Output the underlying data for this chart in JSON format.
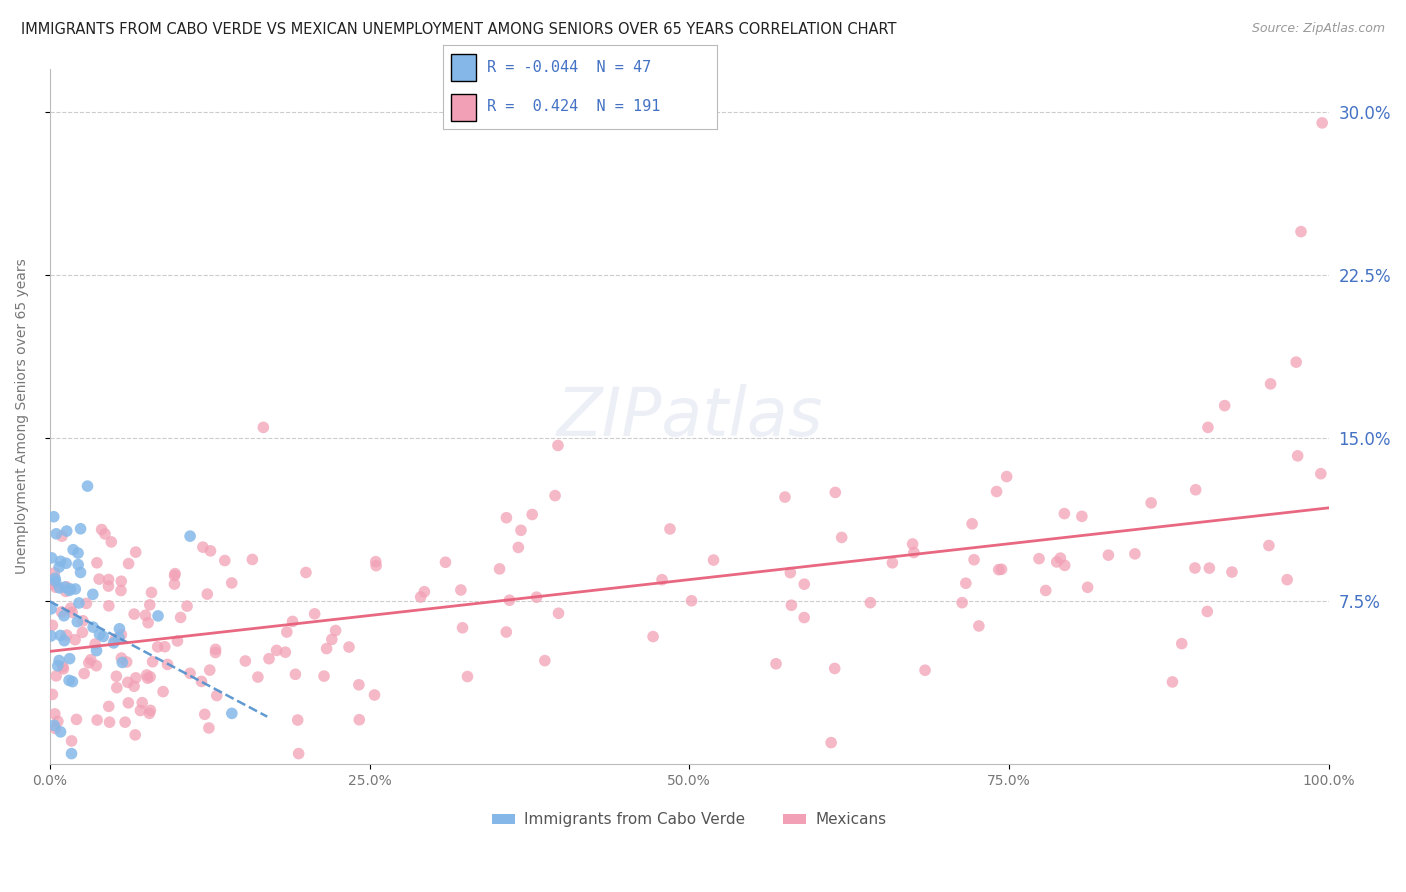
{
  "title": "IMMIGRANTS FROM CABO VERDE VS MEXICAN UNEMPLOYMENT AMONG SENIORS OVER 65 YEARS CORRELATION CHART",
  "source": "Source: ZipAtlas.com",
  "ylabel": "Unemployment Among Seniors over 65 years",
  "xlim": [
    0,
    1.0
  ],
  "ylim": [
    0,
    0.32
  ],
  "yticks": [
    0.075,
    0.15,
    0.225,
    0.3
  ],
  "ytick_labels": [
    "7.5%",
    "15.0%",
    "22.5%",
    "30.0%"
  ],
  "xticks": [
    0.0,
    0.25,
    0.5,
    0.75,
    1.0
  ],
  "xtick_labels": [
    "0.0%",
    "25.0%",
    "50.0%",
    "75.0%",
    "100.0%"
  ],
  "cabo_verde_R": -0.044,
  "cabo_verde_N": 47,
  "mexican_R": 0.424,
  "mexican_N": 191,
  "cabo_verde_color": "#85b8e8",
  "mexican_color": "#f2a0b5",
  "cabo_verde_line_color": "#4f8fcc",
  "mexican_line_color": "#e8607a",
  "background_color": "#ffffff",
  "watermark": "ZIPatlas",
  "grid_color": "#cccccc",
  "tick_label_color": "#4472c4",
  "axis_label_color": "#777777",
  "title_color": "#222222",
  "source_color": "#999999"
}
